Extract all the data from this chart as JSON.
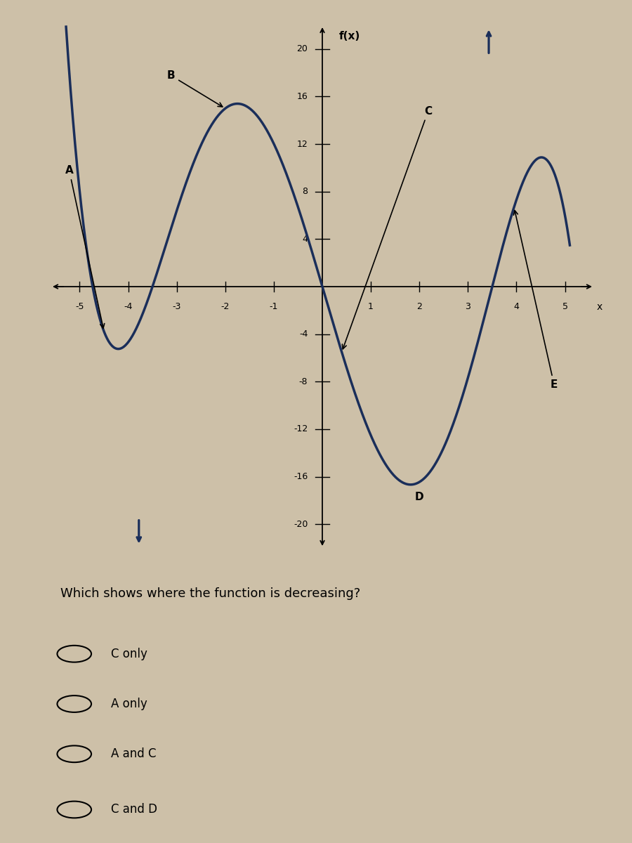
{
  "title": "f(x)",
  "xlim": [
    -5.6,
    5.6
  ],
  "ylim": [
    -22,
    22
  ],
  "xticks": [
    -5,
    -4,
    -3,
    -2,
    -1,
    1,
    2,
    3,
    4,
    5
  ],
  "yticks_pos": [
    4,
    8,
    12,
    16,
    20
  ],
  "yticks_neg": [
    -4,
    -8,
    -12,
    -16,
    -20
  ],
  "curve_color": "#1a2e5a",
  "bg_color": "#cdc0a8",
  "question": "Which shows where the function is decreasing?",
  "options": [
    "C only",
    "A only",
    "A and C",
    "C and D"
  ],
  "key_x": [
    -5.0,
    -3.5,
    -2.0,
    0.0,
    1.5,
    3.5
  ],
  "key_y": [
    8.0,
    0.0,
    15.0,
    0.0,
    -16.0,
    0.0
  ],
  "poly_degree": 5,
  "graph_axes": [
    0.08,
    0.35,
    0.86,
    0.62
  ],
  "question_axes": [
    0.05,
    0.0,
    0.9,
    0.33
  ]
}
